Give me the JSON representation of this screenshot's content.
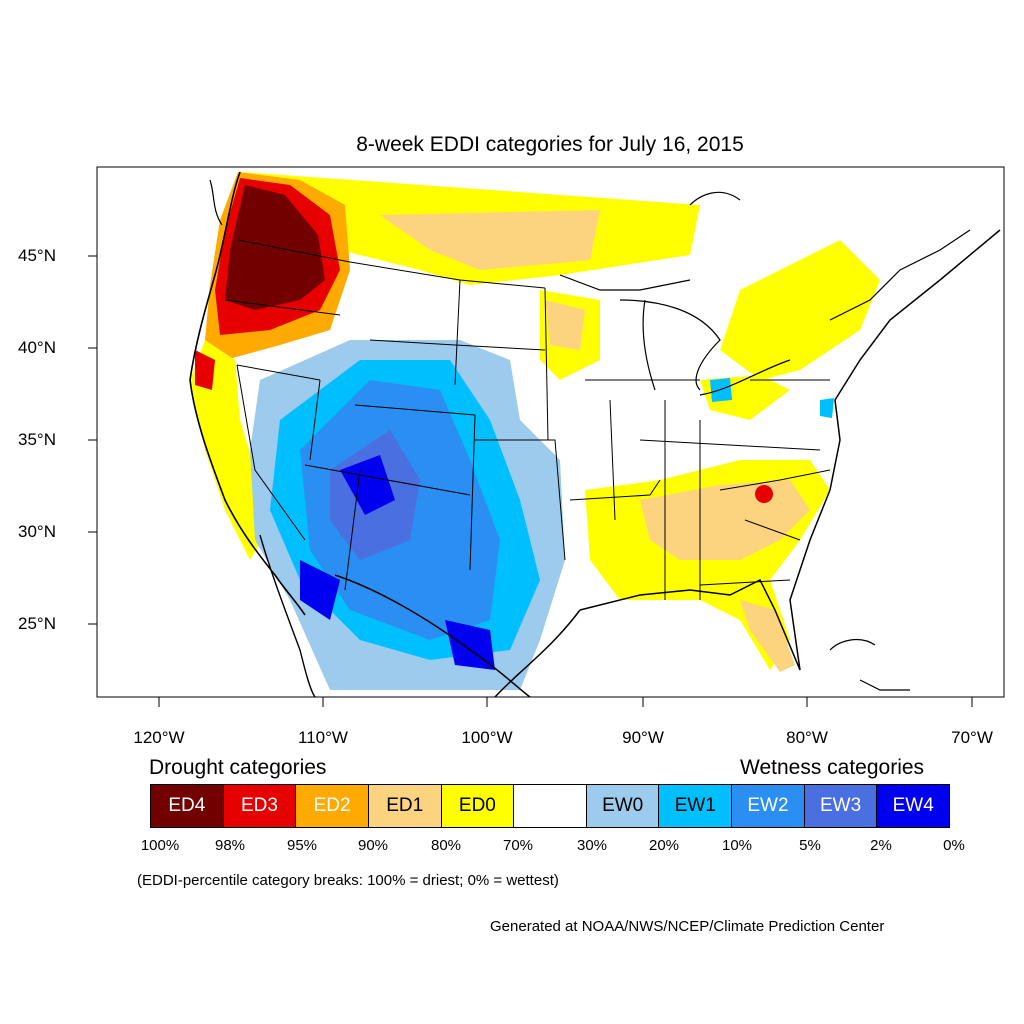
{
  "title": "8-week EDDI categories for July 16, 2015",
  "latitude_labels": [
    "45°N",
    "40°N",
    "35°N",
    "30°N",
    "25°N"
  ],
  "longitude_labels": [
    "120°W",
    "110°W",
    "100°W",
    "90°W",
    "80°W",
    "70°W"
  ],
  "legend": {
    "drought_heading": "Drought categories",
    "wetness_heading": "Wetness categories",
    "categories": [
      {
        "label": "ED4",
        "color": "#730000",
        "text_color": "#ffffff"
      },
      {
        "label": "ED3",
        "color": "#e60000",
        "text_color": "#ffffff"
      },
      {
        "label": "ED2",
        "color": "#ffaa00",
        "text_color": "#ffffff"
      },
      {
        "label": "ED1",
        "color": "#fcd37f",
        "text_color": "#000000"
      },
      {
        "label": "ED0",
        "color": "#ffff00",
        "text_color": "#000000"
      },
      {
        "label": "",
        "color": "#ffffff",
        "text_color": "#000000"
      },
      {
        "label": "EW0",
        "color": "#9ccbee",
        "text_color": "#000000"
      },
      {
        "label": "EW1",
        "color": "#00bfff",
        "text_color": "#000000"
      },
      {
        "label": "EW2",
        "color": "#2a8ef2",
        "text_color": "#ffffff"
      },
      {
        "label": "EW3",
        "color": "#4a6fe0",
        "text_color": "#ffffff"
      },
      {
        "label": "EW4",
        "color": "#0000f0",
        "text_color": "#ffffff"
      }
    ],
    "breaks": [
      "100%",
      "98%",
      "95%",
      "90%",
      "80%",
      "70%",
      "30%",
      "20%",
      "10%",
      "5%",
      "2%",
      "0%"
    ]
  },
  "note": "(EDDI-percentile category breaks: 100% = driest; 0% = wettest)",
  "credit": "Generated at NOAA/NWS/NCEP/Climate Prediction Center"
}
